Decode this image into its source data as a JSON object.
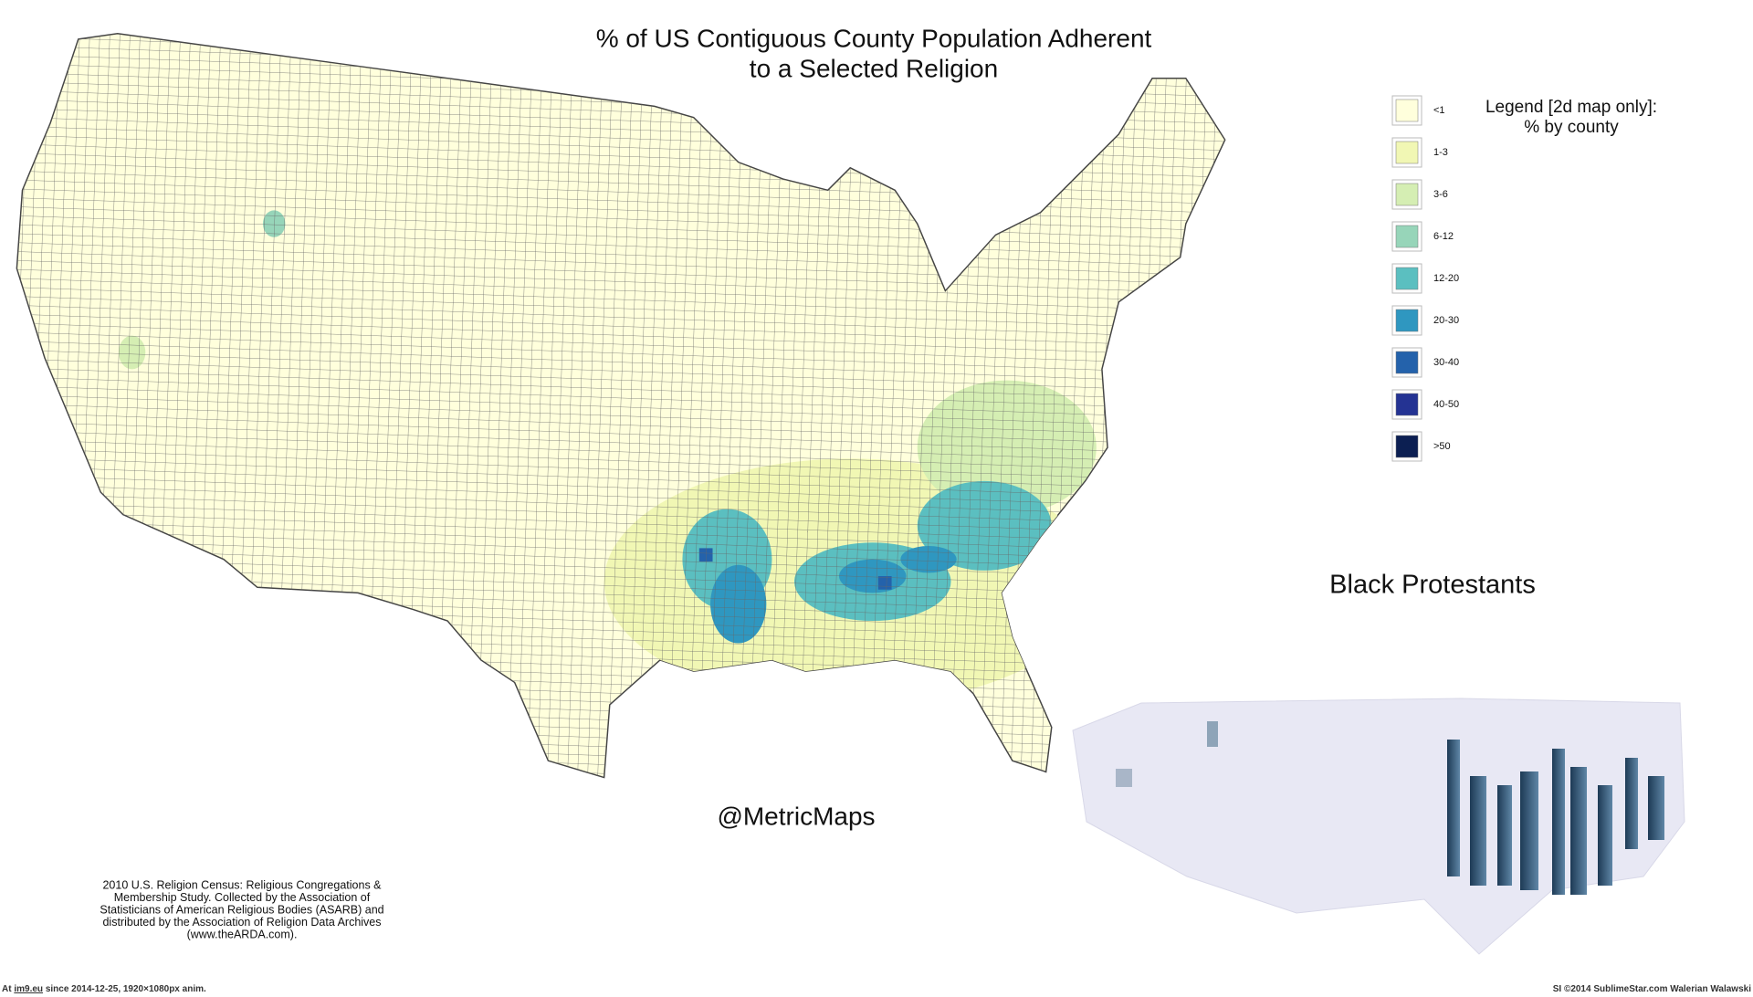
{
  "title": [
    "% of US Contiguous County Population Adherent",
    "to a Selected Religion"
  ],
  "legend": {
    "title": [
      "Legend [2d map only]:",
      "% by county"
    ],
    "items": [
      {
        "label": "<1",
        "color": "#ffffdc"
      },
      {
        "label": "1-3",
        "color": "#f1f7b4"
      },
      {
        "label": "3-6",
        "color": "#d5eeb3"
      },
      {
        "label": "6-12",
        "color": "#97d5b9"
      },
      {
        "label": "12-20",
        "color": "#5bbfc0"
      },
      {
        "label": "20-30",
        "color": "#2f97c0"
      },
      {
        "label": "30-40",
        "color": "#2462ab"
      },
      {
        "label": "40-50",
        "color": "#243393"
      },
      {
        "label": ">50",
        "color": "#0c1f52"
      }
    ]
  },
  "religion": "Black Protestants",
  "credit": "@MetricMaps",
  "source": [
    "2010 U.S. Religion Census: Religious Congregations &",
    "Membership Study. Collected by the Association of",
    "Statisticians of American Religious Bodies (ASARB) and",
    "distributed by the Association of Religion Data Archives",
    "(www.theARDA.com)."
  ],
  "footer": {
    "left_prefix": "At",
    "link": "im9.eu",
    "left_suffix": "since 2014-12-25, 1920×1080px anim.",
    "right": "SI ©2014 SublimeStar.com Walerian Walawski"
  }
}
